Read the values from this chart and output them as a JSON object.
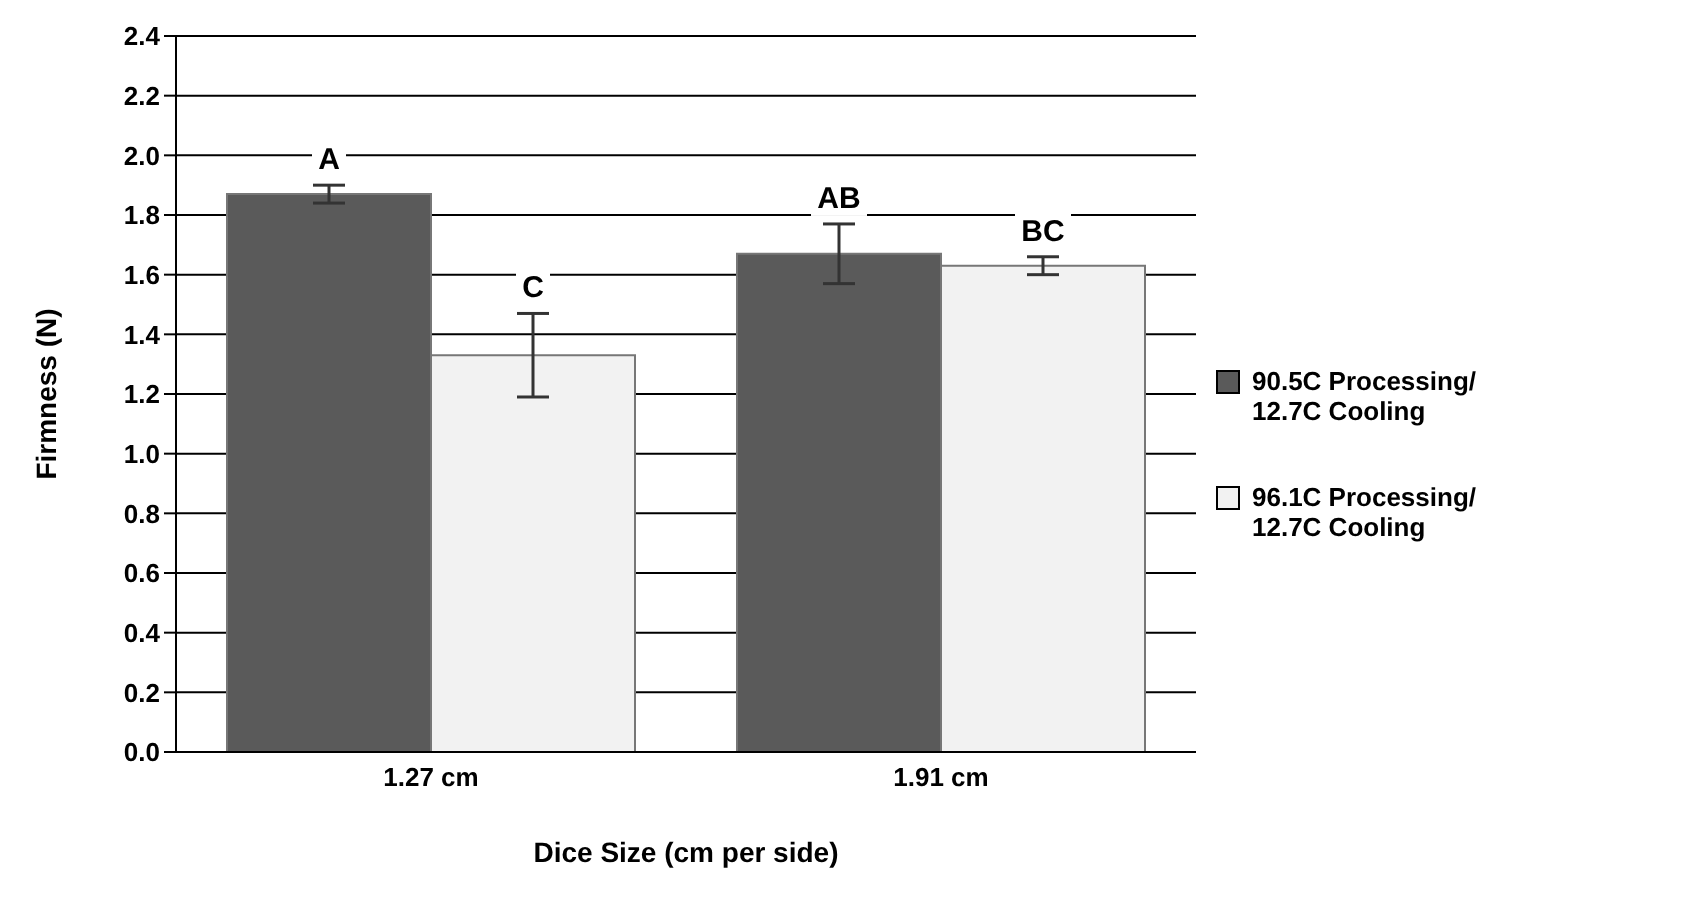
{
  "chart_data": {
    "type": "bar",
    "xlabel": "Dice Size (cm per side)",
    "ylabel": "Firmness (N)",
    "categories": [
      "1.27 cm",
      "1.91 cm"
    ],
    "series": [
      {
        "name": "90.5C Processing/ 12.7C Cooling",
        "color": "#5a5a5a",
        "values": [
          1.87,
          1.67
        ],
        "errors": [
          0.03,
          0.1
        ],
        "value_labels": [
          "A",
          "AB"
        ]
      },
      {
        "name": "96.1C Processing/ 12.7C Cooling",
        "color": "#f2f2f2",
        "values": [
          1.33,
          1.63
        ],
        "errors": [
          0.14,
          0.03
        ],
        "value_labels": [
          "C",
          "BC"
        ]
      }
    ],
    "ylim": [
      0,
      2.4
    ],
    "yticks": [
      {
        "value": 0,
        "label": "0.0"
      },
      0.2,
      0.4,
      0.6,
      0.8,
      {
        "value": 1,
        "label": "1.0"
      },
      1.2,
      1.4,
      1.6,
      1.8,
      {
        "value": 2,
        "label": "2.0"
      },
      2.2,
      2.4
    ],
    "grid": "y",
    "legend": "right"
  }
}
